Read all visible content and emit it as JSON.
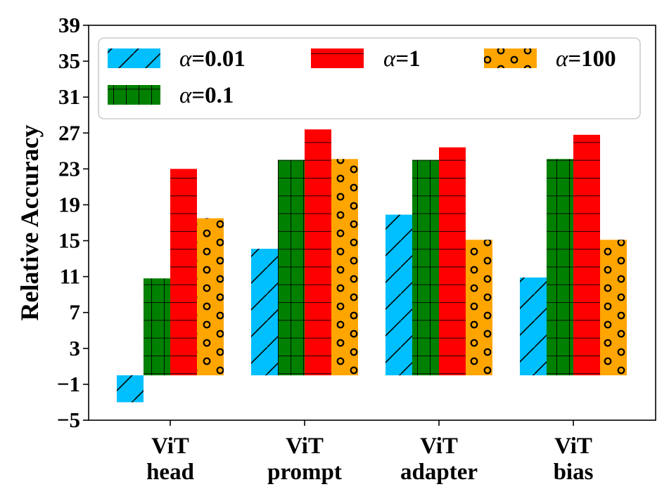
{
  "chart_data": {
    "type": "bar",
    "title": "",
    "xlabel": "",
    "ylabel": "Relative Accuracy",
    "ylim": [
      -5,
      39
    ],
    "yticks": [
      "−5",
      "−1",
      "3",
      "7",
      "11",
      "15",
      "19",
      "23",
      "27",
      "31",
      "35",
      "39"
    ],
    "categories": [
      [
        "ViT",
        "head"
      ],
      [
        "ViT",
        "prompt"
      ],
      [
        "ViT",
        "adapter"
      ],
      [
        "ViT",
        "bias"
      ]
    ],
    "legend_position": "top",
    "series": [
      {
        "name": "α=0.01",
        "alpha_symbol": "α",
        "alpha_value": "=0.01",
        "values": [
          -3.0,
          14.1,
          17.9,
          10.9
        ],
        "color": "#00bfff",
        "hatch": "diagonal"
      },
      {
        "name": "α=0.1",
        "alpha_symbol": "α",
        "alpha_value": "=0.1",
        "values": [
          10.8,
          24.0,
          24.0,
          24.1
        ],
        "color": "#008000",
        "hatch": "grid"
      },
      {
        "name": "α=1",
        "alpha_symbol": "α",
        "alpha_value": "=1",
        "values": [
          23.0,
          27.4,
          25.4,
          26.8
        ],
        "color": "#ff0000",
        "hatch": "horizontal"
      },
      {
        "name": "α=100",
        "alpha_symbol": "α",
        "alpha_value": "=100",
        "values": [
          17.5,
          24.1,
          15.1,
          15.1
        ],
        "color": "#ffa500",
        "hatch": "circles"
      }
    ]
  }
}
